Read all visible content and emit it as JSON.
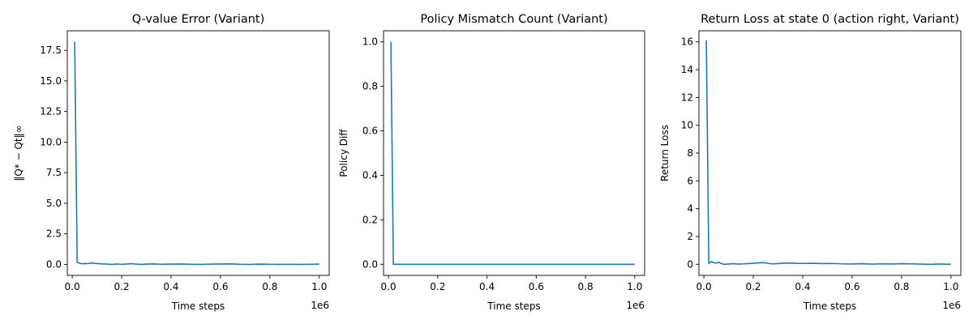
{
  "chart_data": [
    {
      "type": "line",
      "title": "Q-value Error (Variant)",
      "xlabel": "Time steps",
      "ylabel": "‖Q* − Qt‖∞",
      "x_offset_label": "1e6",
      "xlim": [
        -0.02,
        1.04
      ],
      "ylim": [
        -0.9,
        19.1
      ],
      "x_ticks": [
        0.0,
        0.2,
        0.4,
        0.6,
        0.8,
        1.0
      ],
      "x_tick_labels": [
        "0.0",
        "0.2",
        "0.4",
        "0.6",
        "0.8",
        "1.0"
      ],
      "y_ticks": [
        0,
        2.5,
        5,
        7.5,
        10,
        12.5,
        15,
        17.5
      ],
      "y_tick_labels": [
        "0.0",
        "2.5",
        "5.0",
        "7.5",
        "10.0",
        "12.5",
        "15.0",
        "17.5"
      ],
      "grid": false,
      "color": "#1f77b4",
      "series": [
        {
          "x": [
            0.01,
            0.02,
            0.03,
            0.04,
            0.05,
            0.06,
            0.07,
            0.08,
            0.09,
            0.1,
            0.12,
            0.14,
            0.16,
            0.18,
            0.2,
            0.22,
            0.24,
            0.26,
            0.28,
            0.3,
            0.33,
            0.36,
            0.4,
            0.44,
            0.48,
            0.52,
            0.56,
            0.6,
            0.64,
            0.68,
            0.72,
            0.76,
            0.8,
            0.84,
            0.88,
            0.92,
            0.96,
            1.0
          ],
          "y": [
            18.2,
            0.15,
            0.1,
            0.05,
            0.07,
            0.06,
            0.08,
            0.12,
            0.09,
            0.07,
            0.04,
            0.02,
            0.0,
            0.03,
            0.01,
            0.03,
            0.06,
            0.02,
            0.0,
            0.02,
            0.04,
            0.01,
            0.02,
            0.03,
            0.01,
            0.0,
            0.02,
            0.03,
            0.04,
            0.01,
            0.0,
            0.02,
            0.01,
            0.0,
            0.01,
            0.0,
            0.01,
            0.02
          ]
        }
      ]
    },
    {
      "type": "line",
      "title": "Policy Mismatch Count (Variant)",
      "xlabel": "Time steps",
      "ylabel": "Policy Diff",
      "x_offset_label": "1e6",
      "xlim": [
        -0.02,
        1.04
      ],
      "ylim": [
        -0.05,
        1.05
      ],
      "x_ticks": [
        0.0,
        0.2,
        0.4,
        0.6,
        0.8,
        1.0
      ],
      "x_tick_labels": [
        "0.0",
        "0.2",
        "0.4",
        "0.6",
        "0.8",
        "1.0"
      ],
      "y_ticks": [
        0,
        0.2,
        0.4,
        0.6,
        0.8,
        1.0
      ],
      "y_tick_labels": [
        "0.0",
        "0.2",
        "0.4",
        "0.6",
        "0.8",
        "1.0"
      ],
      "grid": false,
      "color": "#1f77b4",
      "series": [
        {
          "x": [
            0.01,
            0.02,
            0.05,
            0.1,
            0.2,
            0.3,
            0.4,
            0.5,
            0.6,
            0.7,
            0.8,
            0.9,
            1.0
          ],
          "y": [
            1.0,
            0.0,
            0.0,
            0.0,
            0.0,
            0.0,
            0.0,
            0.0,
            0.0,
            0.0,
            0.0,
            0.0,
            0.0
          ]
        }
      ]
    },
    {
      "type": "line",
      "title": "Return Loss at state 0 (action right, Variant)",
      "xlabel": "Time steps",
      "ylabel": "Return Loss",
      "x_offset_label": "1e6",
      "xlim": [
        -0.02,
        1.04
      ],
      "ylim": [
        -0.8,
        16.8
      ],
      "x_ticks": [
        0.0,
        0.2,
        0.4,
        0.6,
        0.8,
        1.0
      ],
      "x_tick_labels": [
        "0.0",
        "0.2",
        "0.4",
        "0.6",
        "0.8",
        "1.0"
      ],
      "y_ticks": [
        0,
        2,
        4,
        6,
        8,
        10,
        12,
        14,
        16
      ],
      "y_tick_labels": [
        "0",
        "2",
        "4",
        "6",
        "8",
        "10",
        "12",
        "14",
        "16"
      ],
      "grid": false,
      "color": "#1f77b4",
      "series": [
        {
          "x": [
            0.01,
            0.02,
            0.03,
            0.04,
            0.05,
            0.06,
            0.07,
            0.08,
            0.1,
            0.12,
            0.14,
            0.16,
            0.18,
            0.2,
            0.22,
            0.24,
            0.26,
            0.28,
            0.3,
            0.33,
            0.36,
            0.4,
            0.44,
            0.48,
            0.52,
            0.56,
            0.6,
            0.64,
            0.68,
            0.72,
            0.76,
            0.8,
            0.84,
            0.88,
            0.92,
            0.96,
            1.0
          ],
          "y": [
            16.1,
            0.05,
            0.2,
            0.12,
            0.08,
            0.15,
            0.06,
            0.0,
            0.02,
            0.04,
            0.01,
            0.03,
            0.05,
            0.07,
            0.1,
            0.12,
            0.06,
            0.03,
            0.05,
            0.09,
            0.08,
            0.06,
            0.07,
            0.05,
            0.06,
            0.03,
            0.02,
            0.04,
            0.01,
            0.03,
            0.02,
            0.04,
            0.03,
            0.01,
            0.0,
            0.02,
            0.0
          ]
        }
      ]
    }
  ]
}
